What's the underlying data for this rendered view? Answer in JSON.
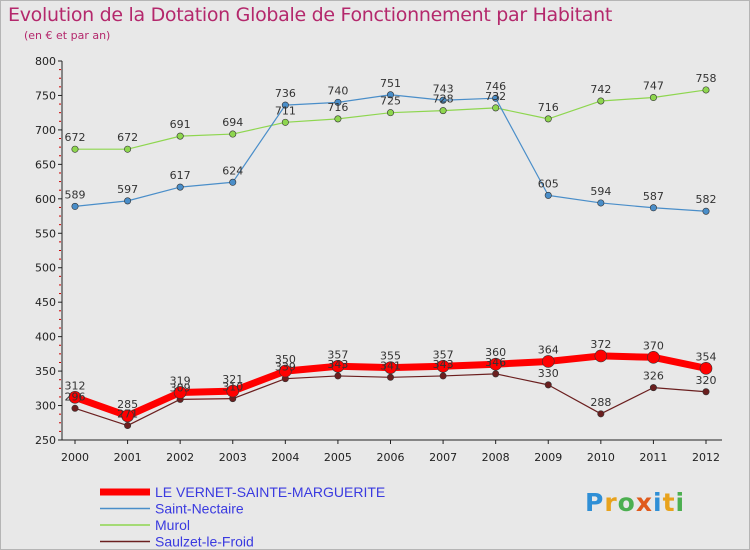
{
  "chart_data": {
    "type": "line",
    "title": "Evolution de la Dotation Globale de Fonctionnement par Habitant",
    "subtitle": "(en € et par an)",
    "xlabel": "",
    "ylabel": "",
    "x": [
      "2000",
      "2001",
      "2002",
      "2003",
      "2004",
      "2005",
      "2006",
      "2007",
      "2008",
      "2009",
      "2010",
      "2011",
      "2012"
    ],
    "ylim": [
      250,
      800
    ],
    "yticks": [
      250,
      300,
      350,
      400,
      450,
      500,
      550,
      600,
      650,
      700,
      750,
      800
    ],
    "grid": false,
    "legend_position": "bottom-left",
    "series": [
      {
        "name": "Murol",
        "color": "#8ed64f",
        "values": [
          672,
          672,
          691,
          694,
          711,
          716,
          725,
          728,
          732,
          716,
          742,
          747,
          758
        ]
      },
      {
        "name": "Saint-Nectaire",
        "color": "#4a8ec9",
        "values": [
          589,
          597,
          617,
          624,
          736,
          740,
          751,
          743,
          746,
          605,
          594,
          587,
          582
        ]
      },
      {
        "name": "Saulzet-le-Froid",
        "color": "#6b1f1f",
        "values": [
          296,
          271,
          309,
          310,
          339,
          343,
          341,
          343,
          346,
          330,
          288,
          326,
          320
        ]
      },
      {
        "name": "LE VERNET-SAINTE-MARGUERITE",
        "color": "#ff0000",
        "values": [
          312,
          285,
          319,
          321,
          350,
          357,
          355,
          357,
          360,
          364,
          372,
          370,
          354
        ]
      }
    ],
    "legend": [
      {
        "name": "LE VERNET-SAINTE-MARGUERITE",
        "color": "#ff0000",
        "text_color": "#3a3ae0"
      },
      {
        "name": "Saint-Nectaire",
        "color": "#4a8ec9",
        "text_color": "#3a3ae0"
      },
      {
        "name": "Murol",
        "color": "#8ed64f",
        "text_color": "#3a3ae0"
      },
      {
        "name": "Saulzet-le-Froid",
        "color": "#6b1f1f",
        "text_color": "#3a3ae0"
      }
    ]
  },
  "logo": {
    "p": "P",
    "r": "r",
    "o": "o",
    "x": "x",
    "i1": "i",
    "t": "t",
    "i2": "i"
  }
}
